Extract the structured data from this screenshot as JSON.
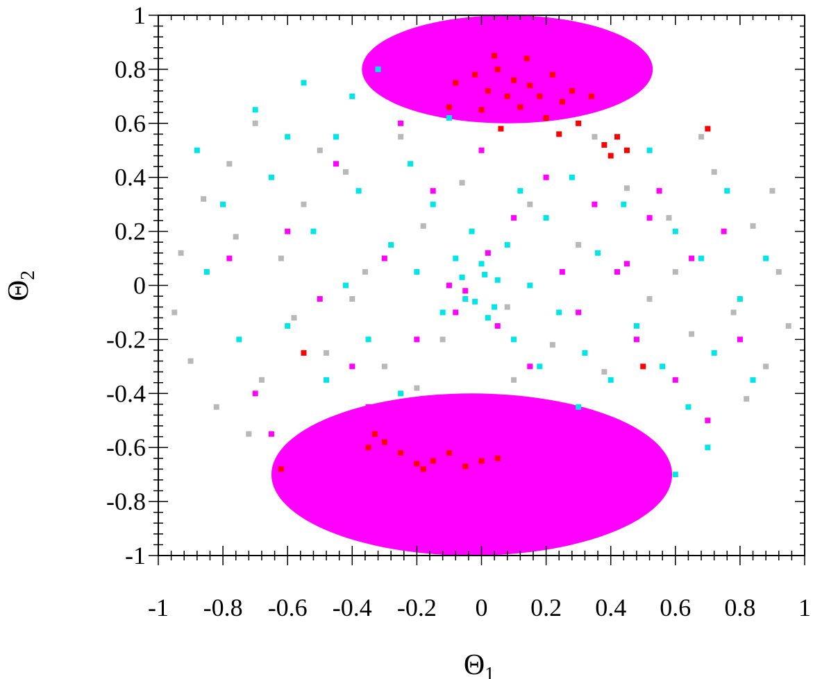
{
  "chart_data": {
    "type": "scatter",
    "title": "",
    "xlabel": {
      "symbol": "Θ",
      "subscript": "1"
    },
    "ylabel": {
      "symbol": "Θ",
      "subscript": "2"
    },
    "xlim": [
      -1,
      1
    ],
    "ylim": [
      -1,
      1
    ],
    "x_ticks": [
      -1,
      -0.8,
      -0.6,
      -0.4,
      -0.2,
      0,
      0.2,
      0.4,
      0.6,
      0.8,
      1
    ],
    "y_ticks": [
      -1,
      -0.8,
      -0.6,
      -0.4,
      -0.2,
      0,
      0.2,
      0.4,
      0.6,
      0.8,
      1
    ],
    "x_tick_labels": [
      "-1",
      "-0.8",
      "-0.6",
      "-0.4",
      "-0.2",
      "0",
      "0.2",
      "0.4",
      "0.6",
      "0.8",
      "1"
    ],
    "y_tick_labels": [
      "-1",
      "-0.8",
      "-0.6",
      "-0.4",
      "-0.2",
      "0",
      "0.2",
      "0.4",
      "0.6",
      "0.8",
      "1"
    ],
    "grid": false,
    "legend": "none",
    "series": [
      {
        "color": "#b8b8b8",
        "points": [
          [
            -0.93,
            0.12
          ],
          [
            -0.95,
            -0.1
          ],
          [
            -0.9,
            -0.28
          ],
          [
            -0.86,
            0.32
          ],
          [
            -0.82,
            -0.45
          ],
          [
            -0.78,
            0.45
          ],
          [
            -0.72,
            -0.55
          ],
          [
            -0.7,
            0.6
          ],
          [
            -0.62,
            0.1
          ],
          [
            -0.58,
            -0.12
          ],
          [
            -0.55,
            0.3
          ],
          [
            -0.48,
            -0.25
          ],
          [
            -0.42,
            0.42
          ],
          [
            -0.36,
            0.05
          ],
          [
            -0.3,
            -0.3
          ],
          [
            -0.25,
            0.55
          ],
          [
            -0.18,
            0.22
          ],
          [
            -0.12,
            -0.2
          ],
          [
            -0.06,
            0.38
          ],
          [
            0.02,
            0.12
          ],
          [
            0.08,
            -0.08
          ],
          [
            0.15,
            0.3
          ],
          [
            0.22,
            -0.22
          ],
          [
            0.3,
            0.15
          ],
          [
            0.38,
            -0.32
          ],
          [
            0.45,
            0.36
          ],
          [
            0.52,
            -0.05
          ],
          [
            0.58,
            0.25
          ],
          [
            0.65,
            -0.18
          ],
          [
            0.72,
            0.42
          ],
          [
            0.78,
            -0.1
          ],
          [
            0.84,
            0.22
          ],
          [
            0.88,
            -0.3
          ],
          [
            0.92,
            0.05
          ],
          [
            0.95,
            -0.15
          ],
          [
            0.9,
            0.35
          ],
          [
            0.82,
            -0.42
          ],
          [
            0.68,
            0.55
          ],
          [
            -0.68,
            -0.35
          ],
          [
            -0.76,
            0.18
          ],
          [
            -0.5,
            0.5
          ],
          [
            0.35,
            0.55
          ],
          [
            -0.2,
            -0.38
          ],
          [
            0.1,
            -0.35
          ],
          [
            -0.4,
            -0.05
          ],
          [
            0.6,
            0.05
          ]
        ]
      },
      {
        "color": "#00e5e5",
        "points": [
          [
            -0.88,
            0.5
          ],
          [
            -0.8,
            0.3
          ],
          [
            -0.75,
            -0.2
          ],
          [
            -0.7,
            0.65
          ],
          [
            -0.65,
            0.4
          ],
          [
            -0.6,
            -0.15
          ],
          [
            -0.55,
            0.75
          ],
          [
            -0.52,
            0.2
          ],
          [
            -0.48,
            -0.35
          ],
          [
            -0.45,
            0.55
          ],
          [
            -0.42,
            0.0
          ],
          [
            -0.38,
            0.35
          ],
          [
            -0.35,
            -0.2
          ],
          [
            -0.32,
            0.8
          ],
          [
            -0.28,
            0.15
          ],
          [
            -0.25,
            -0.4
          ],
          [
            -0.22,
            0.45
          ],
          [
            -0.2,
            0.05
          ],
          [
            -0.15,
            0.3
          ],
          [
            -0.12,
            -0.1
          ],
          [
            -0.1,
            0.62
          ],
          [
            -0.08,
            0.1
          ],
          [
            -0.05,
            -0.05
          ],
          [
            -0.03,
            0.2
          ],
          [
            0.0,
            0.08
          ],
          [
            0.02,
            -0.12
          ],
          [
            0.05,
            0.02
          ],
          [
            0.08,
            0.15
          ],
          [
            0.1,
            -0.2
          ],
          [
            0.12,
            0.35
          ],
          [
            0.15,
            0.0
          ],
          [
            0.18,
            -0.3
          ],
          [
            0.2,
            0.25
          ],
          [
            0.24,
            -0.1
          ],
          [
            0.28,
            0.4
          ],
          [
            0.32,
            -0.25
          ],
          [
            0.36,
            0.12
          ],
          [
            0.4,
            -0.35
          ],
          [
            0.44,
            0.3
          ],
          [
            0.48,
            -0.15
          ],
          [
            0.52,
            0.5
          ],
          [
            0.56,
            -0.3
          ],
          [
            0.6,
            0.2
          ],
          [
            0.64,
            -0.45
          ],
          [
            0.68,
            0.1
          ],
          [
            0.72,
            -0.25
          ],
          [
            0.76,
            0.35
          ],
          [
            0.8,
            -0.05
          ],
          [
            0.84,
            -0.35
          ],
          [
            0.88,
            0.1
          ],
          [
            0.7,
            -0.6
          ],
          [
            0.6,
            -0.7
          ],
          [
            -0.6,
            0.55
          ],
          [
            -0.85,
            0.05
          ],
          [
            -0.4,
            0.7
          ],
          [
            0.3,
            -0.45
          ],
          [
            -0.02,
            -0.06
          ],
          [
            0.04,
            -0.08
          ],
          [
            -0.06,
            0.03
          ],
          [
            0.01,
            0.04
          ]
        ]
      },
      {
        "color": "#ff00ff",
        "regions": [
          {
            "center": [
              -0.03,
              -0.7
            ],
            "radius": [
              0.62,
              0.3
            ]
          },
          {
            "center": [
              0.08,
              0.8
            ],
            "radius": [
              0.45,
              0.2
            ]
          }
        ],
        "points": [
          [
            -0.7,
            -0.4
          ],
          [
            -0.6,
            0.2
          ],
          [
            -0.5,
            -0.05
          ],
          [
            -0.45,
            0.45
          ],
          [
            -0.4,
            -0.3
          ],
          [
            -0.3,
            0.1
          ],
          [
            -0.25,
            0.6
          ],
          [
            -0.2,
            -0.2
          ],
          [
            -0.15,
            0.35
          ],
          [
            -0.1,
            0.0
          ],
          [
            -0.05,
            -0.02
          ],
          [
            0.0,
            0.5
          ],
          [
            0.05,
            -0.15
          ],
          [
            0.1,
            0.25
          ],
          [
            0.15,
            -0.3
          ],
          [
            0.2,
            0.4
          ],
          [
            0.25,
            0.05
          ],
          [
            0.3,
            -0.1
          ],
          [
            0.35,
            0.3
          ],
          [
            0.42,
            0.05
          ],
          [
            0.45,
            0.08
          ],
          [
            0.48,
            -0.2
          ],
          [
            0.52,
            0.25
          ],
          [
            0.55,
            0.35
          ],
          [
            0.6,
            -0.35
          ],
          [
            0.65,
            0.1
          ],
          [
            0.7,
            -0.5
          ],
          [
            0.75,
            0.2
          ],
          [
            0.8,
            -0.2
          ],
          [
            0.5,
            -0.6
          ],
          [
            0.55,
            -0.75
          ],
          [
            -0.65,
            -0.55
          ],
          [
            -0.78,
            0.1
          ],
          [
            -0.35,
            -0.45
          ],
          [
            0.02,
            0.12
          ],
          [
            -0.08,
            -0.1
          ]
        ]
      },
      {
        "color": "#ff0000",
        "points": [
          [
            -0.08,
            0.75
          ],
          [
            -0.02,
            0.78
          ],
          [
            0.02,
            0.72
          ],
          [
            0.05,
            0.8
          ],
          [
            0.08,
            0.7
          ],
          [
            0.1,
            0.76
          ],
          [
            0.12,
            0.66
          ],
          [
            0.15,
            0.74
          ],
          [
            0.18,
            0.7
          ],
          [
            0.2,
            0.62
          ],
          [
            0.22,
            0.78
          ],
          [
            0.25,
            0.68
          ],
          [
            0.28,
            0.72
          ],
          [
            0.3,
            0.6
          ],
          [
            0.34,
            0.7
          ],
          [
            0.38,
            0.52
          ],
          [
            0.4,
            0.48
          ],
          [
            0.42,
            0.55
          ],
          [
            0.45,
            0.5
          ],
          [
            0.06,
            0.58
          ],
          [
            0.0,
            0.65
          ],
          [
            0.04,
            0.85
          ],
          [
            0.14,
            0.84
          ],
          [
            -0.1,
            0.66
          ],
          [
            0.24,
            0.56
          ],
          [
            -0.33,
            -0.55
          ],
          [
            -0.3,
            -0.58
          ],
          [
            -0.25,
            -0.62
          ],
          [
            -0.2,
            -0.66
          ],
          [
            -0.15,
            -0.65
          ],
          [
            -0.1,
            -0.62
          ],
          [
            -0.05,
            -0.67
          ],
          [
            0.0,
            -0.65
          ],
          [
            0.05,
            -0.64
          ],
          [
            -0.35,
            -0.6
          ],
          [
            -0.18,
            -0.68
          ],
          [
            -0.62,
            -0.68
          ],
          [
            -0.55,
            -0.25
          ],
          [
            0.5,
            -0.3
          ],
          [
            0.7,
            0.58
          ]
        ]
      }
    ]
  }
}
